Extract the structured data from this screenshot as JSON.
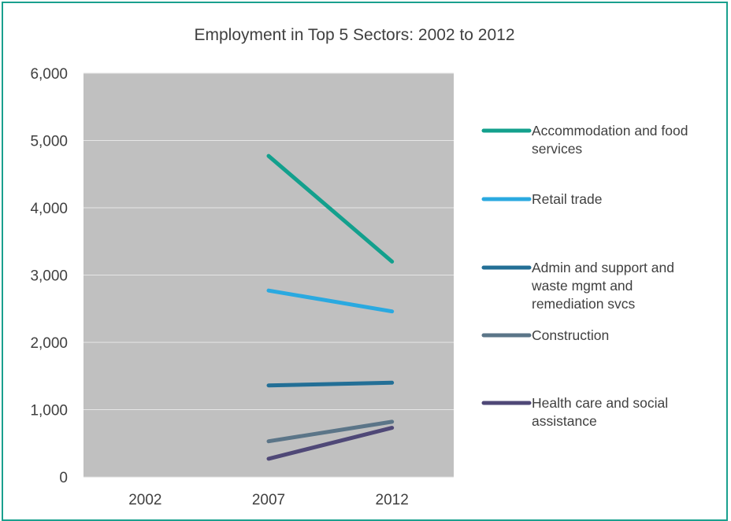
{
  "chart_data": {
    "type": "line",
    "title": "Employment in Top 5 Sectors: 2002 to 2012",
    "categories": [
      "2002",
      "2007",
      "2012"
    ],
    "ylim": [
      0,
      6000
    ],
    "yticks": [
      0,
      1000,
      2000,
      3000,
      4000,
      5000,
      6000
    ],
    "ytick_labels": [
      "0",
      "1,000",
      "2,000",
      "3,000",
      "4,000",
      "5,000",
      "6,000"
    ],
    "grid": true,
    "legend_position": "right",
    "plot_background": "#c0c0c0",
    "series": [
      {
        "name": "Accommodation and food services",
        "name_lines": [
          "Accommodation and food",
          "services"
        ],
        "color": "#13a08d",
        "values": [
          null,
          4770,
          3200
        ]
      },
      {
        "name": "Retail trade",
        "name_lines": [
          "Retail trade"
        ],
        "color": "#2aa9e0",
        "values": [
          null,
          2770,
          2460
        ]
      },
      {
        "name": "Admin and support and waste mgmt and remediation svcs",
        "name_lines": [
          "Admin and support and",
          "waste mgmt and",
          "remediation svcs"
        ],
        "color": "#236f96",
        "values": [
          null,
          1360,
          1400
        ]
      },
      {
        "name": "Construction",
        "name_lines": [
          "Construction"
        ],
        "color": "#5b7588",
        "values": [
          null,
          530,
          820
        ]
      },
      {
        "name": "Health care and social assistance",
        "name_lines": [
          "Health care and social",
          "assistance"
        ],
        "color": "#4f4877",
        "values": [
          null,
          270,
          730
        ]
      }
    ]
  }
}
